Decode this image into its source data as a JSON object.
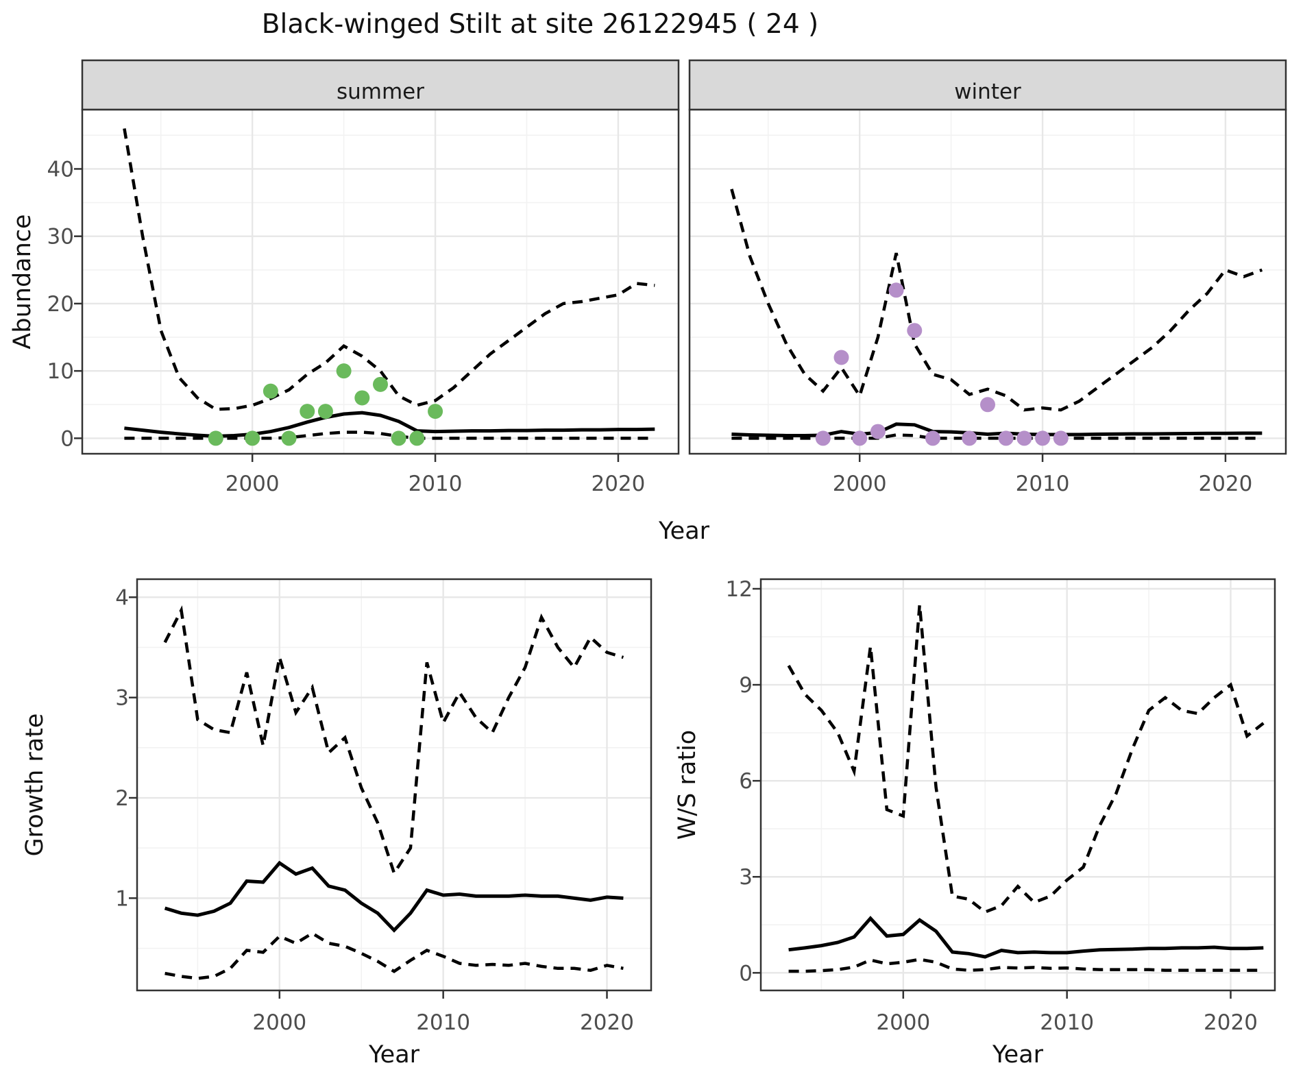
{
  "title": "Black-winged Stilt at site 26122945 ( 24 )",
  "colors": {
    "summer_points": "#6aba5c",
    "winter_points": "#b58fc9",
    "line": "#000000",
    "strip_fill": "#d9d9d9",
    "panel_border": "#333333",
    "grid_major": "#e7e7e7",
    "grid_minor": "#f2f2f2",
    "tick_text": "#4d4d4d"
  },
  "facets": {
    "summer": {
      "label": "summer"
    },
    "winter": {
      "label": "winter"
    }
  },
  "axis_titles": {
    "abundance": "Abundance",
    "year_top": "Year",
    "growth_rate": "Growth rate",
    "year_bottom_left": "Year",
    "ws_ratio": "W/S ratio",
    "year_bottom_right": "Year"
  },
  "chart_data": [
    {
      "id": "abundance-summer",
      "type": "line",
      "facet": "summer",
      "ylabel": "Abundance",
      "xlabel": "Year",
      "xlim": [
        1990.7,
        2023.3
      ],
      "ylim": [
        -2.3,
        48.8
      ],
      "x_ticks": [
        2000,
        2010,
        2020
      ],
      "x_minor": [
        1995,
        2005,
        2015
      ],
      "y_ticks": [
        0,
        10,
        20,
        30,
        40
      ],
      "y_minor": [
        5,
        15,
        25,
        35,
        45
      ],
      "x": [
        1993,
        1994,
        1995,
        1996,
        1997,
        1998,
        1999,
        2000,
        2001,
        2002,
        2003,
        2004,
        2005,
        2006,
        2007,
        2008,
        2009,
        2010,
        2011,
        2012,
        2013,
        2014,
        2015,
        2016,
        2017,
        2018,
        2019,
        2020,
        2021,
        2022
      ],
      "series": [
        {
          "name": "median",
          "style": "solid",
          "values": [
            1.5,
            1.2,
            0.9,
            0.65,
            0.45,
            0.3,
            0.4,
            0.6,
            1.0,
            1.6,
            2.4,
            3.1,
            3.6,
            3.8,
            3.4,
            2.5,
            1.1,
            1.0,
            1.05,
            1.1,
            1.1,
            1.15,
            1.15,
            1.2,
            1.2,
            1.25,
            1.25,
            1.3,
            1.3,
            1.35
          ]
        },
        {
          "name": "ci-upper",
          "style": "dashed",
          "values": [
            46,
            30,
            16,
            9,
            6,
            4.3,
            4.4,
            4.9,
            5.9,
            7.2,
            9.5,
            11.2,
            13.7,
            12.2,
            10,
            6.3,
            4.9,
            5.6,
            7.5,
            10,
            12.5,
            14.5,
            16.5,
            18.5,
            20,
            20.3,
            20.8,
            21.3,
            23,
            22.7
          ]
        },
        {
          "name": "ci-lower",
          "style": "dashed",
          "values": [
            0,
            0,
            0,
            0,
            0,
            0,
            0,
            0,
            0,
            0.1,
            0.4,
            0.7,
            0.9,
            0.9,
            0.7,
            0.3,
            0,
            0,
            0,
            0,
            0,
            0,
            0,
            0,
            0,
            0,
            0,
            0,
            0,
            0
          ]
        }
      ],
      "points": {
        "name": "observed-counts",
        "color": "#6aba5c",
        "x": [
          1998,
          2000,
          2001,
          2002,
          2003,
          2004,
          2005,
          2006,
          2007,
          2008,
          2009,
          2010
        ],
        "y": [
          0,
          0,
          7,
          0,
          4,
          4,
          10,
          6,
          8,
          0,
          0,
          4
        ]
      }
    },
    {
      "id": "abundance-winter",
      "type": "line",
      "facet": "winter",
      "ylabel": "Abundance",
      "xlabel": "Year",
      "xlim": [
        1990.7,
        2023.3
      ],
      "ylim": [
        -2.3,
        48.8
      ],
      "x_ticks": [
        2000,
        2010,
        2020
      ],
      "x_minor": [
        1995,
        2005,
        2015
      ],
      "y_ticks": [
        0,
        10,
        20,
        30,
        40
      ],
      "y_minor": [
        5,
        15,
        25,
        35,
        45
      ],
      "x": [
        1993,
        1994,
        1995,
        1996,
        1997,
        1998,
        1999,
        2000,
        2001,
        2002,
        2003,
        2004,
        2005,
        2006,
        2007,
        2008,
        2009,
        2010,
        2011,
        2012,
        2013,
        2014,
        2015,
        2016,
        2017,
        2018,
        2019,
        2020,
        2021,
        2022
      ],
      "series": [
        {
          "name": "median",
          "style": "solid",
          "values": [
            0.6,
            0.5,
            0.45,
            0.4,
            0.4,
            0.45,
            1.0,
            0.6,
            0.85,
            2.1,
            2.0,
            1.0,
            0.95,
            0.8,
            0.6,
            0.75,
            0.6,
            0.55,
            0.55,
            0.55,
            0.6,
            0.62,
            0.65,
            0.65,
            0.68,
            0.7,
            0.72,
            0.72,
            0.75,
            0.75
          ]
        },
        {
          "name": "ci-upper",
          "style": "dashed",
          "values": [
            37,
            27,
            20,
            14,
            9.5,
            7,
            10.5,
            6.3,
            15,
            27.5,
            14,
            9.5,
            8.7,
            6.5,
            7.3,
            6.3,
            4.2,
            4.5,
            4.2,
            5.5,
            7.5,
            9.5,
            11.5,
            13.5,
            16,
            19,
            21.5,
            25,
            24,
            25
          ]
        },
        {
          "name": "ci-lower",
          "style": "dashed",
          "values": [
            0,
            0,
            0,
            0,
            0,
            0,
            0,
            0,
            0,
            0.5,
            0.4,
            0,
            0,
            0,
            0,
            0,
            0,
            0,
            0,
            0,
            0,
            0,
            0,
            0,
            0,
            0,
            0,
            0,
            0,
            0
          ]
        }
      ],
      "points": {
        "name": "observed-counts",
        "color": "#b58fc9",
        "x": [
          1998,
          1999,
          2000,
          2001,
          2002,
          2003,
          2004,
          2006,
          2007,
          2008,
          2009,
          2010,
          2011
        ],
        "y": [
          0,
          12,
          0,
          1,
          22,
          16,
          0,
          0,
          5,
          0,
          0,
          0,
          0
        ]
      }
    },
    {
      "id": "growth-rate",
      "type": "line",
      "ylabel": "Growth rate",
      "xlabel": "Year",
      "xlim": [
        1991.3,
        2022.7
      ],
      "ylim": [
        0.08,
        4.18
      ],
      "x_ticks": [
        2000,
        2010,
        2020
      ],
      "x_minor": [
        1995,
        2005,
        2015
      ],
      "y_ticks": [
        1,
        2,
        3,
        4
      ],
      "y_minor": [
        0.5,
        1.5,
        2.5,
        3.5
      ],
      "x": [
        1993,
        1994,
        1995,
        1996,
        1997,
        1998,
        1999,
        2000,
        2001,
        2002,
        2003,
        2004,
        2005,
        2006,
        2007,
        2008,
        2009,
        2010,
        2011,
        2012,
        2013,
        2014,
        2015,
        2016,
        2017,
        2018,
        2019,
        2020,
        2021
      ],
      "series": [
        {
          "name": "median",
          "style": "solid",
          "values": [
            0.9,
            0.85,
            0.83,
            0.87,
            0.95,
            1.17,
            1.16,
            1.35,
            1.24,
            1.3,
            1.12,
            1.08,
            0.95,
            0.85,
            0.68,
            0.85,
            1.08,
            1.03,
            1.04,
            1.02,
            1.02,
            1.02,
            1.03,
            1.02,
            1.02,
            1.0,
            0.98,
            1.01,
            1.0
          ]
        },
        {
          "name": "ci-upper",
          "style": "dashed",
          "values": [
            3.55,
            3.87,
            2.78,
            2.68,
            2.65,
            3.25,
            2.52,
            3.4,
            2.85,
            3.1,
            2.45,
            2.6,
            2.1,
            1.75,
            1.25,
            1.5,
            3.35,
            2.75,
            3.05,
            2.8,
            2.65,
            3.0,
            3.3,
            3.8,
            3.5,
            3.3,
            3.6,
            3.45,
            3.4
          ]
        },
        {
          "name": "ci-lower",
          "style": "dashed",
          "values": [
            0.25,
            0.22,
            0.2,
            0.22,
            0.3,
            0.48,
            0.46,
            0.62,
            0.55,
            0.65,
            0.55,
            0.52,
            0.45,
            0.37,
            0.27,
            0.38,
            0.48,
            0.42,
            0.35,
            0.33,
            0.34,
            0.33,
            0.35,
            0.32,
            0.3,
            0.3,
            0.28,
            0.33,
            0.3
          ]
        }
      ]
    },
    {
      "id": "ws-ratio",
      "type": "line",
      "ylabel": "W/S ratio",
      "xlabel": "Year",
      "xlim": [
        1991.3,
        2022.7
      ],
      "ylim": [
        -0.55,
        12.3
      ],
      "x_ticks": [
        2000,
        2010,
        2020
      ],
      "x_minor": [
        1995,
        2005,
        2015
      ],
      "y_ticks": [
        0,
        3,
        6,
        9,
        12
      ],
      "y_minor": [
        1.5,
        4.5,
        7.5,
        10.5
      ],
      "x": [
        1993,
        1994,
        1995,
        1996,
        1997,
        1998,
        1999,
        2000,
        2001,
        2002,
        2003,
        2004,
        2005,
        2006,
        2007,
        2008,
        2009,
        2010,
        2011,
        2012,
        2013,
        2014,
        2015,
        2016,
        2017,
        2018,
        2019,
        2020,
        2021,
        2022
      ],
      "series": [
        {
          "name": "median",
          "style": "solid",
          "values": [
            0.72,
            0.78,
            0.85,
            0.95,
            1.12,
            1.7,
            1.15,
            1.2,
            1.65,
            1.3,
            0.65,
            0.6,
            0.5,
            0.7,
            0.63,
            0.65,
            0.63,
            0.63,
            0.68,
            0.72,
            0.73,
            0.74,
            0.76,
            0.76,
            0.78,
            0.78,
            0.8,
            0.76,
            0.76,
            0.78
          ]
        },
        {
          "name": "ci-upper",
          "style": "dashed",
          "values": [
            9.6,
            8.7,
            8.2,
            7.5,
            6.3,
            10.2,
            5.1,
            4.9,
            11.5,
            5.8,
            2.4,
            2.3,
            1.9,
            2.1,
            2.7,
            2.2,
            2.4,
            2.9,
            3.3,
            4.6,
            5.6,
            7.0,
            8.2,
            8.6,
            8.2,
            8.1,
            8.6,
            9.0,
            7.4,
            7.8
          ]
        },
        {
          "name": "ci-lower",
          "style": "dashed",
          "values": [
            0.05,
            0.05,
            0.07,
            0.1,
            0.18,
            0.4,
            0.28,
            0.33,
            0.42,
            0.33,
            0.12,
            0.08,
            0.1,
            0.17,
            0.15,
            0.17,
            0.14,
            0.15,
            0.12,
            0.1,
            0.1,
            0.1,
            0.1,
            0.08,
            0.08,
            0.08,
            0.08,
            0.08,
            0.08,
            0.08
          ]
        }
      ]
    }
  ]
}
